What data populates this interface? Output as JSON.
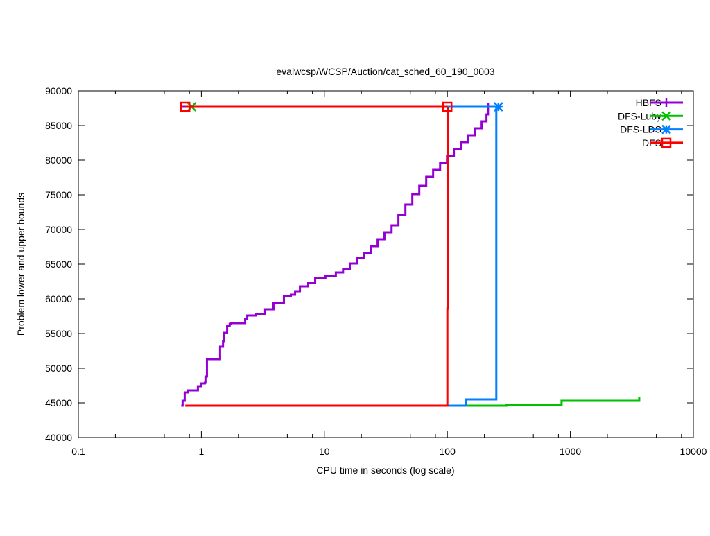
{
  "chart_data": {
    "type": "line",
    "title": "evalwcsp/WCSP/Auction/cat_sched_60_190_0003",
    "xlabel": "CPU time in seconds (log scale)",
    "ylabel": "Problem lower and upper bounds",
    "xscale": "log",
    "xlim": [
      0.1,
      10000
    ],
    "ylim": [
      40000,
      90000
    ],
    "xticks": [
      "0.1",
      "1",
      "10",
      "100",
      "1000",
      "10000"
    ],
    "xtick_values": [
      0.1,
      1,
      10,
      100,
      1000,
      10000
    ],
    "yticks": [
      "40000",
      "45000",
      "50000",
      "55000",
      "60000",
      "65000",
      "70000",
      "75000",
      "80000",
      "85000",
      "90000"
    ],
    "ytick_values": [
      40000,
      45000,
      50000,
      55000,
      60000,
      65000,
      70000,
      75000,
      80000,
      85000,
      90000
    ],
    "grid": false,
    "legend_placement": "top-right",
    "series": [
      {
        "name": "HBFS",
        "color": "#9400d3",
        "marker": "plus",
        "lower": [
          [
            0.686,
            44600
          ],
          [
            0.704,
            45300
          ],
          [
            0.732,
            45600
          ],
          [
            0.732,
            46500
          ],
          [
            0.781,
            46800
          ],
          [
            0.937,
            46800
          ],
          [
            0.937,
            47400
          ],
          [
            1.0,
            47800
          ],
          [
            1.067,
            47900
          ],
          [
            1.08,
            48800
          ],
          [
            1.11,
            49100
          ],
          [
            1.11,
            51300
          ],
          [
            1.42,
            51300
          ],
          [
            1.42,
            53100
          ],
          [
            1.5,
            53900
          ],
          [
            1.52,
            55100
          ],
          [
            1.62,
            56100
          ],
          [
            1.7,
            56400
          ],
          [
            1.75,
            56500
          ],
          [
            2.21,
            56500
          ],
          [
            2.27,
            57100
          ],
          [
            2.36,
            57600
          ],
          [
            2.79,
            57800
          ],
          [
            3.3,
            58500
          ],
          [
            3.86,
            59400
          ],
          [
            4.57,
            59400
          ],
          [
            4.69,
            60400
          ],
          [
            5.34,
            60600
          ],
          [
            5.78,
            61100
          ],
          [
            6.33,
            61800
          ],
          [
            7.39,
            62300
          ],
          [
            8.42,
            63000
          ],
          [
            10.2,
            63300
          ],
          [
            12.4,
            63800
          ],
          [
            14.2,
            64300
          ],
          [
            16.1,
            65100
          ],
          [
            18.4,
            65900
          ],
          [
            20.9,
            66600
          ],
          [
            23.8,
            67600
          ],
          [
            27.1,
            68600
          ],
          [
            30.8,
            69600
          ],
          [
            35.2,
            70600
          ],
          [
            40.0,
            72100
          ],
          [
            45.6,
            73600
          ],
          [
            51.9,
            75100
          ],
          [
            59.1,
            76300
          ],
          [
            67.3,
            77600
          ],
          [
            76.6,
            78600
          ],
          [
            87.3,
            79600
          ],
          [
            99.4,
            80600
          ],
          [
            113,
            81600
          ],
          [
            129,
            82600
          ],
          [
            147,
            83600
          ],
          [
            167,
            84600
          ],
          [
            190,
            85600
          ],
          [
            208,
            86600
          ],
          [
            214,
            88300
          ]
        ],
        "upper": [
          [
            0.686,
            87700
          ],
          [
            214,
            87700
          ]
        ],
        "markers": []
      },
      {
        "name": "DFS-Luby",
        "color": "#00c000",
        "marker": "x",
        "lower": [
          [
            141,
            44600
          ],
          [
            303,
            44700
          ],
          [
            848,
            45300
          ],
          [
            3630,
            45300
          ],
          [
            3630,
            45900
          ]
        ],
        "upper": [
          [
            0.834,
            87700
          ],
          [
            0.834,
            87700
          ]
        ],
        "markers": [
          [
            0.834,
            87700
          ]
        ]
      },
      {
        "name": "DFS-LDS",
        "color": "#0080ff",
        "marker": "star",
        "lower": [
          [
            100,
            44600
          ],
          [
            141,
            44600
          ],
          [
            141,
            45500
          ],
          [
            250,
            45500
          ],
          [
            250,
            64300
          ],
          [
            250,
            87700
          ]
        ],
        "upper": [
          [
            100,
            87700
          ],
          [
            260,
            87700
          ]
        ],
        "markers": [
          [
            260,
            87700
          ]
        ]
      },
      {
        "name": "DFS",
        "color": "#ff0000",
        "marker": "square",
        "lower": [
          [
            0.74,
            44600
          ],
          [
            100,
            44600
          ],
          [
            100,
            58600
          ],
          [
            101,
            58600
          ],
          [
            101,
            87700
          ]
        ],
        "upper": [
          [
            0.74,
            87700
          ],
          [
            100,
            87700
          ]
        ],
        "markers": [
          [
            0.74,
            87700
          ],
          [
            100,
            87700
          ]
        ]
      }
    ]
  }
}
